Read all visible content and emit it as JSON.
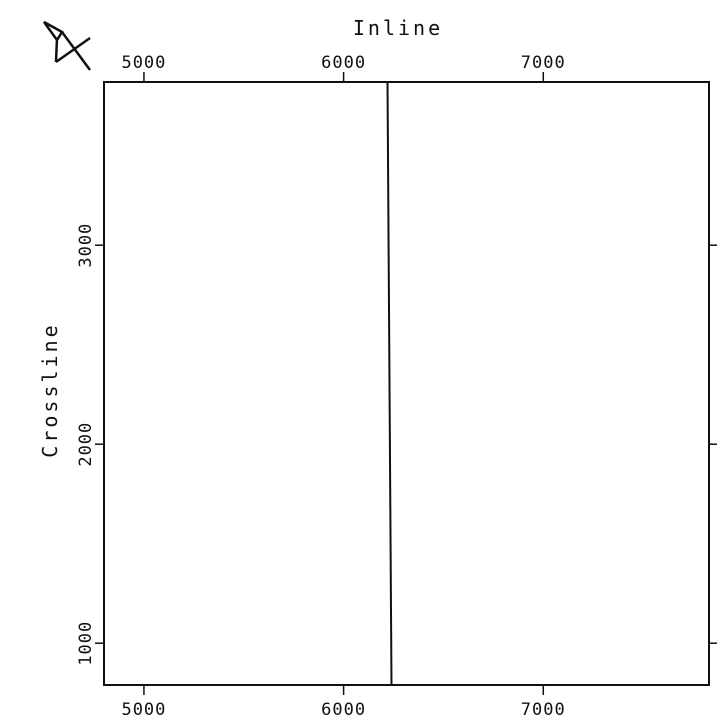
{
  "chart_data": {
    "type": "line",
    "title": "",
    "xlabel": "Inline",
    "ylabel": "Crossline",
    "x_ticks_top": [
      5000,
      6000,
      7000
    ],
    "x_ticks_bottom": [
      5000,
      6000,
      7000
    ],
    "y_ticks": [
      1000,
      2000,
      3000
    ],
    "xlim": [
      4800,
      7830
    ],
    "ylim": [
      790,
      3820
    ],
    "grid": false,
    "north_arrow": "N",
    "series": [
      {
        "x": [
          6220,
          6240
        ],
        "y": [
          3820,
          790
        ]
      }
    ]
  }
}
